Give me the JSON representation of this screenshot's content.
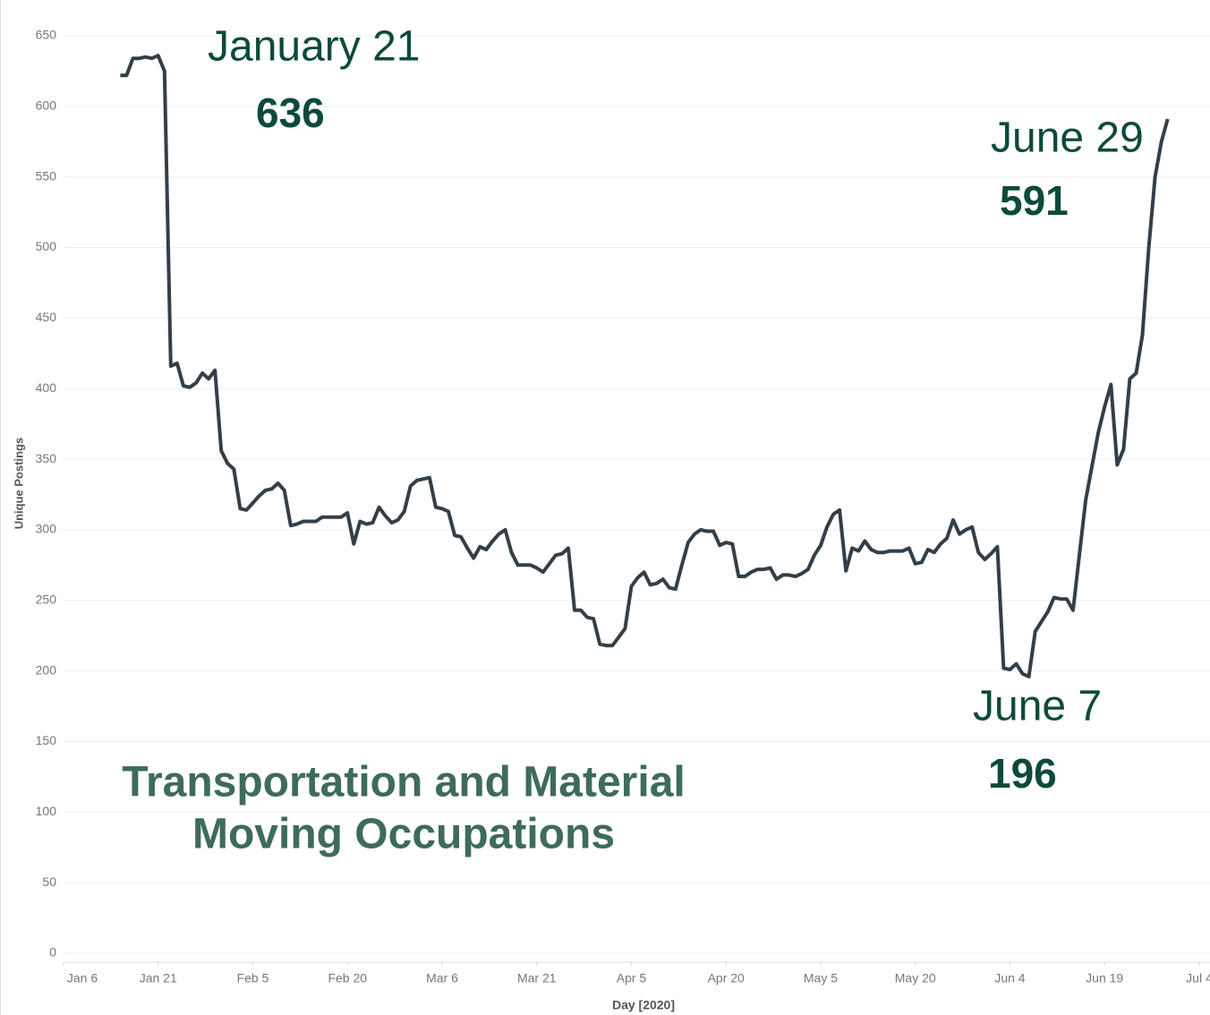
{
  "chart_data": {
    "type": "line",
    "title": [
      "Transportation and Material",
      "Moving Occupations"
    ],
    "xlabel": "Day [2020]",
    "ylabel": "Unique Postings",
    "color": "#333f48",
    "grid": true,
    "ylim": [
      0,
      650
    ],
    "yticks": [
      0,
      50,
      100,
      150,
      200,
      250,
      300,
      350,
      400,
      450,
      500,
      550,
      600,
      650
    ],
    "xlim": [
      "2020-01-06",
      "2020-07-05"
    ],
    "xticks": [
      {
        "value": "2020-01-06",
        "label": "Jan 6"
      },
      {
        "value": "2020-01-21",
        "label": "Jan 21"
      },
      {
        "value": "2020-02-05",
        "label": "Feb 5"
      },
      {
        "value": "2020-02-20",
        "label": "Feb 20"
      },
      {
        "value": "2020-03-06",
        "label": "Mar 6"
      },
      {
        "value": "2020-03-21",
        "label": "Mar 21"
      },
      {
        "value": "2020-04-05",
        "label": "Apr 5"
      },
      {
        "value": "2020-04-20",
        "label": "Apr 20"
      },
      {
        "value": "2020-05-05",
        "label": "May 5"
      },
      {
        "value": "2020-05-20",
        "label": "May 20"
      },
      {
        "value": "2020-06-04",
        "label": "Jun 4"
      },
      {
        "value": "2020-06-19",
        "label": "Jun 19"
      },
      {
        "value": "2020-07-04",
        "label": "Jul 4"
      }
    ],
    "annotations": [
      {
        "text": "January 21",
        "value": "636"
      },
      {
        "text": "June 29",
        "value": "591"
      },
      {
        "text": "June 7",
        "value": "196"
      }
    ],
    "x": [
      "2020-01-15",
      "2020-01-16",
      "2020-01-17",
      "2020-01-18",
      "2020-01-19",
      "2020-01-20",
      "2020-01-21",
      "2020-01-22",
      "2020-01-23",
      "2020-01-24",
      "2020-01-25",
      "2020-01-26",
      "2020-01-27",
      "2020-01-28",
      "2020-01-29",
      "2020-01-30",
      "2020-01-31",
      "2020-02-01",
      "2020-02-02",
      "2020-02-03",
      "2020-02-04",
      "2020-02-05",
      "2020-02-06",
      "2020-02-07",
      "2020-02-08",
      "2020-02-09",
      "2020-02-10",
      "2020-02-11",
      "2020-02-12",
      "2020-02-13",
      "2020-02-14",
      "2020-02-15",
      "2020-02-16",
      "2020-02-17",
      "2020-02-18",
      "2020-02-19",
      "2020-02-20",
      "2020-02-21",
      "2020-02-22",
      "2020-02-23",
      "2020-02-24",
      "2020-02-25",
      "2020-02-26",
      "2020-02-27",
      "2020-02-28",
      "2020-02-29",
      "2020-03-01",
      "2020-03-02",
      "2020-03-03",
      "2020-03-04",
      "2020-03-05",
      "2020-03-06",
      "2020-03-07",
      "2020-03-08",
      "2020-03-09",
      "2020-03-10",
      "2020-03-11",
      "2020-03-12",
      "2020-03-13",
      "2020-03-14",
      "2020-03-15",
      "2020-03-16",
      "2020-03-17",
      "2020-03-18",
      "2020-03-19",
      "2020-03-20",
      "2020-03-21",
      "2020-03-22",
      "2020-03-23",
      "2020-03-24",
      "2020-03-25",
      "2020-03-26",
      "2020-03-27",
      "2020-03-28",
      "2020-03-29",
      "2020-03-30",
      "2020-03-31",
      "2020-04-01",
      "2020-04-02",
      "2020-04-03",
      "2020-04-04",
      "2020-04-05",
      "2020-04-06",
      "2020-04-07",
      "2020-04-08",
      "2020-04-09",
      "2020-04-10",
      "2020-04-11",
      "2020-04-12",
      "2020-04-13",
      "2020-04-14",
      "2020-04-15",
      "2020-04-16",
      "2020-04-17",
      "2020-04-18",
      "2020-04-19",
      "2020-04-20",
      "2020-04-21",
      "2020-04-22",
      "2020-04-23",
      "2020-04-24",
      "2020-04-25",
      "2020-04-26",
      "2020-04-27",
      "2020-04-28",
      "2020-04-29",
      "2020-04-30",
      "2020-05-01",
      "2020-05-02",
      "2020-05-03",
      "2020-05-04",
      "2020-05-05",
      "2020-05-06",
      "2020-05-07",
      "2020-05-08",
      "2020-05-09",
      "2020-05-10",
      "2020-05-11",
      "2020-05-12",
      "2020-05-13",
      "2020-05-14",
      "2020-05-15",
      "2020-05-16",
      "2020-05-17",
      "2020-05-18",
      "2020-05-19",
      "2020-05-20",
      "2020-05-21",
      "2020-05-22",
      "2020-05-23",
      "2020-05-24",
      "2020-05-25",
      "2020-05-26",
      "2020-05-27",
      "2020-05-28",
      "2020-05-29",
      "2020-05-30",
      "2020-05-31",
      "2020-06-01",
      "2020-06-02",
      "2020-06-03",
      "2020-06-04",
      "2020-06-05",
      "2020-06-06",
      "2020-06-07",
      "2020-06-08",
      "2020-06-09",
      "2020-06-10",
      "2020-06-11",
      "2020-06-12",
      "2020-06-13",
      "2020-06-14",
      "2020-06-15",
      "2020-06-16",
      "2020-06-17",
      "2020-06-18",
      "2020-06-19",
      "2020-06-20",
      "2020-06-21",
      "2020-06-22",
      "2020-06-23",
      "2020-06-24",
      "2020-06-25",
      "2020-06-26",
      "2020-06-27",
      "2020-06-28",
      "2020-06-29"
    ],
    "values": [
      622,
      622,
      634,
      634,
      635,
      634,
      636,
      625,
      416,
      418,
      402,
      401,
      404,
      411,
      407,
      413,
      356,
      347,
      343,
      315,
      314,
      319,
      324,
      328,
      329,
      333,
      328,
      303,
      304,
      306,
      306,
      306,
      309,
      309,
      309,
      309,
      312,
      290,
      306,
      304,
      305,
      316,
      310,
      305,
      307,
      313,
      331,
      335,
      336,
      337,
      316,
      315,
      313,
      296,
      295,
      287,
      280,
      288,
      286,
      292,
      297,
      300,
      284,
      275,
      275,
      275,
      273,
      270,
      276,
      282,
      283,
      287,
      243,
      243,
      238,
      237,
      219,
      218,
      218,
      224,
      230,
      260,
      266,
      270,
      261,
      262,
      265,
      259,
      258,
      275,
      291,
      297,
      300,
      299,
      299,
      289,
      291,
      290,
      267,
      267,
      270,
      272,
      272,
      273,
      265,
      268,
      268,
      267,
      269,
      272,
      282,
      289,
      302,
      311,
      314,
      271,
      287,
      285,
      292,
      286,
      284,
      284,
      285,
      285,
      285,
      287,
      276,
      277,
      286,
      284,
      290,
      294,
      307,
      297,
      300,
      302,
      284,
      279,
      283,
      288,
      202,
      201,
      205,
      198,
      196,
      228,
      235,
      242,
      252,
      251,
      251,
      243,
      282,
      321,
      345,
      369,
      387,
      403,
      346,
      357,
      407,
      411,
      438,
      500,
      550,
      575,
      591
    ]
  }
}
